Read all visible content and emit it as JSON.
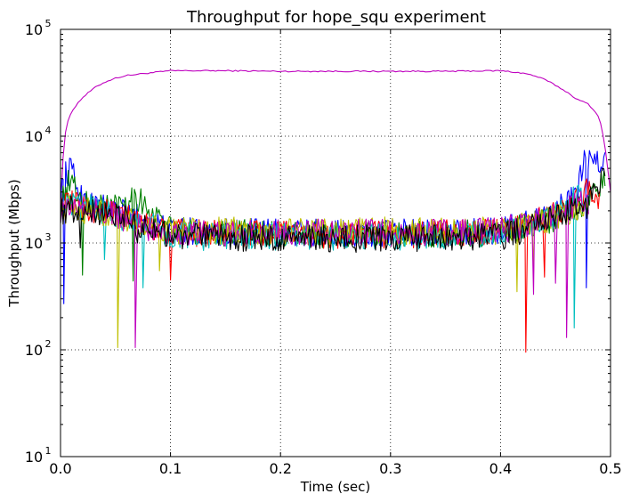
{
  "chart_data": {
    "type": "line",
    "title": "Throughput for hope_squ experiment",
    "xlabel": "Time (sec)",
    "ylabel": "Throughput (Mbps)",
    "xlim": [
      0.0,
      0.5
    ],
    "ylim": [
      10,
      100000
    ],
    "yscale": "log",
    "grid": true,
    "legend": "none",
    "x_ticks": [
      "0.0",
      "0.1",
      "0.2",
      "0.3",
      "0.4",
      "0.5"
    ],
    "y_ticks": [
      {
        "base": "10",
        "exp": "1"
      },
      {
        "base": "10",
        "exp": "2"
      },
      {
        "base": "10",
        "exp": "3"
      },
      {
        "base": "10",
        "exp": "4"
      },
      {
        "base": "10",
        "exp": "5"
      }
    ],
    "series": [
      {
        "color": "#bf00bf",
        "kind": "aggregate",
        "points": [
          [
            0.0,
            2000
          ],
          [
            0.003,
            9000
          ],
          [
            0.006,
            13000
          ],
          [
            0.01,
            17000
          ],
          [
            0.015,
            20000
          ],
          [
            0.02,
            23000
          ],
          [
            0.03,
            28000
          ],
          [
            0.04,
            32000
          ],
          [
            0.05,
            35000
          ],
          [
            0.06,
            37000
          ],
          [
            0.07,
            38000
          ],
          [
            0.08,
            39000
          ],
          [
            0.09,
            40000
          ],
          [
            0.1,
            41000
          ],
          [
            0.15,
            41000
          ],
          [
            0.2,
            40500
          ],
          [
            0.25,
            40500
          ],
          [
            0.3,
            40500
          ],
          [
            0.35,
            40500
          ],
          [
            0.4,
            41000
          ],
          [
            0.41,
            40000
          ],
          [
            0.42,
            39000
          ],
          [
            0.43,
            37000
          ],
          [
            0.44,
            34000
          ],
          [
            0.45,
            30000
          ],
          [
            0.46,
            26000
          ],
          [
            0.47,
            22000
          ],
          [
            0.48,
            20000
          ],
          [
            0.49,
            15000
          ],
          [
            0.495,
            8000
          ],
          [
            0.5,
            3000
          ]
        ]
      },
      {
        "color": "#0000ff",
        "spikes": [
          [
            0.003,
            270
          ],
          [
            0.478,
            380
          ]
        ],
        "points": [
          [
            0.0,
            3000
          ],
          [
            0.005,
            4500
          ],
          [
            0.01,
            4800
          ],
          [
            0.015,
            3500
          ],
          [
            0.02,
            2500
          ],
          [
            0.03,
            2300
          ],
          [
            0.05,
            2000
          ],
          [
            0.07,
            1800
          ],
          [
            0.1,
            1300
          ],
          [
            0.2,
            1250
          ],
          [
            0.3,
            1250
          ],
          [
            0.4,
            1300
          ],
          [
            0.42,
            1500
          ],
          [
            0.44,
            1800
          ],
          [
            0.46,
            2300
          ],
          [
            0.47,
            2800
          ],
          [
            0.475,
            5500
          ],
          [
            0.495,
            5600
          ]
        ]
      },
      {
        "color": "#008000",
        "spikes": [
          [
            0.02,
            500
          ],
          [
            0.066,
            440
          ]
        ],
        "points": [
          [
            0.0,
            2200
          ],
          [
            0.005,
            3500
          ],
          [
            0.01,
            3700
          ],
          [
            0.015,
            3000
          ],
          [
            0.02,
            2400
          ],
          [
            0.03,
            2200
          ],
          [
            0.05,
            2300
          ],
          [
            0.068,
            2800
          ],
          [
            0.1,
            1300
          ],
          [
            0.2,
            1200
          ],
          [
            0.3,
            1200
          ],
          [
            0.4,
            1250
          ],
          [
            0.42,
            1400
          ],
          [
            0.44,
            1600
          ],
          [
            0.46,
            1900
          ],
          [
            0.48,
            2500
          ],
          [
            0.495,
            3800
          ]
        ]
      },
      {
        "color": "#ff0000",
        "spikes": [
          [
            0.1,
            450
          ],
          [
            0.423,
            95
          ],
          [
            0.44,
            480
          ]
        ],
        "points": [
          [
            0.0,
            2100
          ],
          [
            0.01,
            2300
          ],
          [
            0.02,
            2100
          ],
          [
            0.04,
            2000
          ],
          [
            0.06,
            1700
          ],
          [
            0.1,
            1250
          ],
          [
            0.2,
            1200
          ],
          [
            0.3,
            1200
          ],
          [
            0.4,
            1250
          ],
          [
            0.42,
            1400
          ],
          [
            0.44,
            1700
          ],
          [
            0.46,
            2000
          ],
          [
            0.47,
            2500
          ],
          [
            0.48,
            3200
          ],
          [
            0.49,
            2600
          ]
        ]
      },
      {
        "color": "#00bfbf",
        "spikes": [
          [
            0.04,
            700
          ],
          [
            0.075,
            380
          ],
          [
            0.13,
            850
          ],
          [
            0.467,
            160
          ]
        ],
        "points": [
          [
            0.0,
            2000
          ],
          [
            0.01,
            2200
          ],
          [
            0.03,
            2100
          ],
          [
            0.05,
            1800
          ],
          [
            0.08,
            1500
          ],
          [
            0.1,
            1200
          ],
          [
            0.2,
            1150
          ],
          [
            0.3,
            1150
          ],
          [
            0.4,
            1200
          ],
          [
            0.42,
            1350
          ],
          [
            0.44,
            1600
          ],
          [
            0.46,
            2000
          ],
          [
            0.47,
            3000
          ],
          [
            0.48,
            2400
          ]
        ]
      },
      {
        "color": "#bfbf00",
        "spikes": [
          [
            0.052,
            105
          ],
          [
            0.09,
            550
          ],
          [
            0.415,
            350
          ],
          [
            0.43,
            520
          ]
        ],
        "points": [
          [
            0.0,
            2000
          ],
          [
            0.01,
            2100
          ],
          [
            0.03,
            2000
          ],
          [
            0.05,
            1700
          ],
          [
            0.08,
            1400
          ],
          [
            0.1,
            1300
          ],
          [
            0.2,
            1300
          ],
          [
            0.3,
            1300
          ],
          [
            0.4,
            1300
          ],
          [
            0.42,
            1450
          ],
          [
            0.44,
            1650
          ],
          [
            0.46,
            1900
          ],
          [
            0.48,
            2200
          ]
        ]
      },
      {
        "color": "#bf00bf",
        "kind": "flow",
        "spikes": [
          [
            0.068,
            105
          ],
          [
            0.43,
            330
          ],
          [
            0.45,
            420
          ],
          [
            0.46,
            130
          ]
        ],
        "points": [
          [
            0.0,
            2000
          ],
          [
            0.01,
            2200
          ],
          [
            0.03,
            2000
          ],
          [
            0.05,
            1800
          ],
          [
            0.08,
            1400
          ],
          [
            0.1,
            1250
          ],
          [
            0.2,
            1250
          ],
          [
            0.3,
            1250
          ],
          [
            0.4,
            1300
          ],
          [
            0.42,
            1500
          ],
          [
            0.44,
            1700
          ],
          [
            0.46,
            2100
          ],
          [
            0.48,
            2400
          ]
        ]
      },
      {
        "color": "#000000",
        "spikes": [
          [
            0.018,
            900
          ],
          [
            0.07,
            1000
          ]
        ],
        "points": [
          [
            0.0,
            2000
          ],
          [
            0.01,
            2100
          ],
          [
            0.03,
            2000
          ],
          [
            0.05,
            1900
          ],
          [
            0.08,
            1400
          ],
          [
            0.1,
            1150
          ],
          [
            0.2,
            1100
          ],
          [
            0.3,
            1100
          ],
          [
            0.4,
            1150
          ],
          [
            0.42,
            1300
          ],
          [
            0.44,
            1550
          ],
          [
            0.46,
            1900
          ],
          [
            0.48,
            2300
          ],
          [
            0.495,
            4200
          ]
        ]
      }
    ]
  }
}
